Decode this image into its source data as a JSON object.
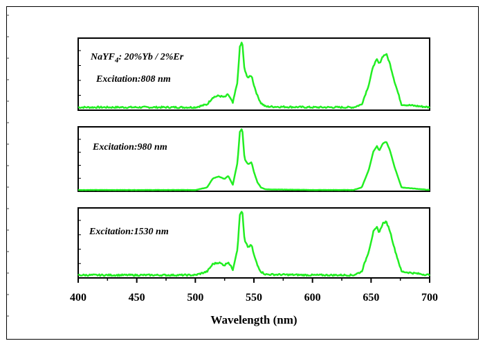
{
  "chart_data": {
    "type": "line",
    "xlabel": "Wavelength (nm)",
    "xlim": [
      400,
      700
    ],
    "xticks": [
      400,
      450,
      500,
      550,
      600,
      650,
      700
    ],
    "line_color": "#22ee22",
    "panels": [
      {
        "label_line1_base": "NaYF",
        "label_line1_sub": "4",
        "label_line1_rest": ": 20%Yb / 2%Er",
        "label_line2": "Excitation:808 nm",
        "baseline": 0.04,
        "series": [
          {
            "x": [
              400,
              500,
              510,
              515,
              520,
              525,
              528,
              532,
              536,
              538,
              540,
              542,
              545,
              548,
              550,
              553,
              556,
              560,
              600,
              635,
              642,
              648,
              652,
              655,
              657,
              660,
              663,
              666,
              670,
              676,
              700
            ],
            "y": [
              0.04,
              0.04,
              0.08,
              0.18,
              0.2,
              0.18,
              0.22,
              0.1,
              0.4,
              0.88,
              0.95,
              0.55,
              0.45,
              0.48,
              0.35,
              0.2,
              0.1,
              0.05,
              0.04,
              0.04,
              0.08,
              0.35,
              0.62,
              0.7,
              0.64,
              0.75,
              0.78,
              0.65,
              0.4,
              0.08,
              0.04
            ]
          }
        ]
      },
      {
        "label_line2": "Excitation:980 nm",
        "baseline": 0.02,
        "series": [
          {
            "x": [
              400,
              500,
              510,
              515,
              520,
              525,
              528,
              532,
              536,
              538,
              540,
              542,
              545,
              548,
              550,
              553,
              556,
              560,
              600,
              635,
              642,
              648,
              652,
              655,
              657,
              660,
              663,
              666,
              670,
              676,
              700
            ],
            "y": [
              0.02,
              0.02,
              0.06,
              0.2,
              0.23,
              0.19,
              0.24,
              0.1,
              0.45,
              0.92,
              0.98,
              0.5,
              0.42,
              0.45,
              0.3,
              0.14,
              0.06,
              0.03,
              0.02,
              0.02,
              0.06,
              0.33,
              0.62,
              0.7,
              0.63,
              0.74,
              0.77,
              0.64,
              0.38,
              0.06,
              0.02
            ]
          }
        ]
      },
      {
        "label_line2": "Excitation:1530 nm",
        "baseline": 0.04,
        "series": [
          {
            "x": [
              400,
              500,
              510,
              515,
              520,
              525,
              528,
              532,
              536,
              538,
              540,
              542,
              545,
              548,
              550,
              553,
              556,
              560,
              600,
              635,
              642,
              648,
              652,
              655,
              657,
              660,
              663,
              666,
              670,
              676,
              700
            ],
            "y": [
              0.04,
              0.04,
              0.09,
              0.2,
              0.22,
              0.18,
              0.23,
              0.12,
              0.42,
              0.9,
              0.97,
              0.53,
              0.44,
              0.47,
              0.33,
              0.18,
              0.09,
              0.05,
              0.04,
              0.04,
              0.09,
              0.38,
              0.66,
              0.72,
              0.65,
              0.78,
              0.8,
              0.68,
              0.42,
              0.09,
              0.04
            ]
          }
        ]
      }
    ]
  }
}
